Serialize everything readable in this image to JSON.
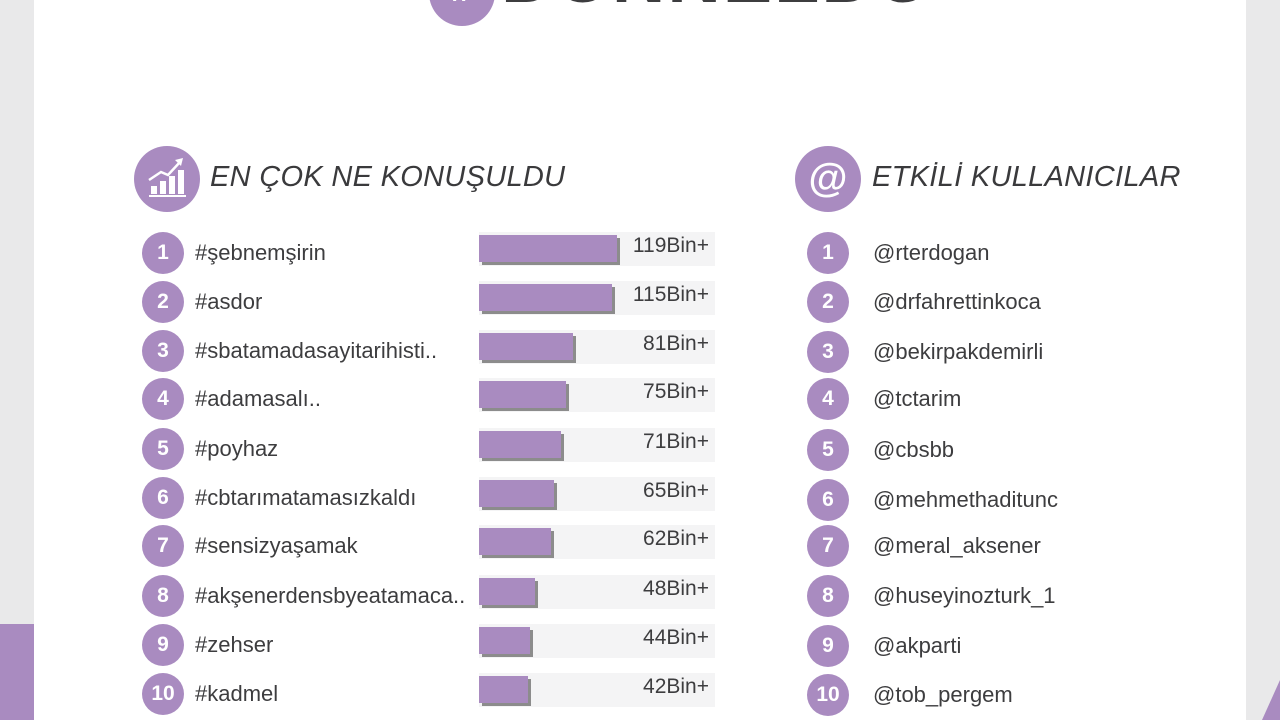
{
  "header": {
    "hash_symbol": "#",
    "title": "DÜNNELDU"
  },
  "left_section": {
    "icon": "trending-chart-icon",
    "title": "EN ÇOK NE KONUŞULDU",
    "items": [
      {
        "rank": "1",
        "tag": "#şebnemşirin",
        "value": "119Bin+",
        "count_k": 119
      },
      {
        "rank": "2",
        "tag": "#asdor",
        "value": "115Bin+",
        "count_k": 115
      },
      {
        "rank": "3",
        "tag": "#sbatamadasayitarihisti..",
        "value": "81Bin+",
        "count_k": 81
      },
      {
        "rank": "4",
        "tag": "#adamasalı..",
        "value": "75Bin+",
        "count_k": 75
      },
      {
        "rank": "5",
        "tag": "#poyhaz",
        "value": "71Bin+",
        "count_k": 71
      },
      {
        "rank": "6",
        "tag": "#cbtarımatamasızkaldı",
        "value": "65Bin+",
        "count_k": 65
      },
      {
        "rank": "7",
        "tag": "#sensizyaşamak",
        "value": "62Bin+",
        "count_k": 62
      },
      {
        "rank": "8",
        "tag": "#akşenerdensbyeatamaca..",
        "value": "48Bin+",
        "count_k": 48
      },
      {
        "rank": "9",
        "tag": "#zehser",
        "value": "44Bin+",
        "count_k": 44
      },
      {
        "rank": "10",
        "tag": "#kadmel",
        "value": "42Bin+",
        "count_k": 42
      }
    ]
  },
  "right_section": {
    "icon_glyph": "@",
    "title": "ETKİLİ KULLANICILAR",
    "items": [
      {
        "rank": "1",
        "user": "@rterdogan"
      },
      {
        "rank": "2",
        "user": "@drfahrettinkoca"
      },
      {
        "rank": "3",
        "user": "@bekirpakdemirli"
      },
      {
        "rank": "4",
        "user": "@tctarim"
      },
      {
        "rank": "5",
        "user": "@cbsbb"
      },
      {
        "rank": "6",
        "user": "@mehmethaditunc"
      },
      {
        "rank": "7",
        "user": "@meral_aksener"
      },
      {
        "rank": "8",
        "user": "@huseyinozturk_1"
      },
      {
        "rank": "9",
        "user": "@akparti"
      },
      {
        "rank": "10",
        "user": "@tob_pergem"
      }
    ]
  },
  "colors": {
    "accent": "#a98bc0",
    "text": "#3d3d3f",
    "track": "#f4f4f5"
  }
}
